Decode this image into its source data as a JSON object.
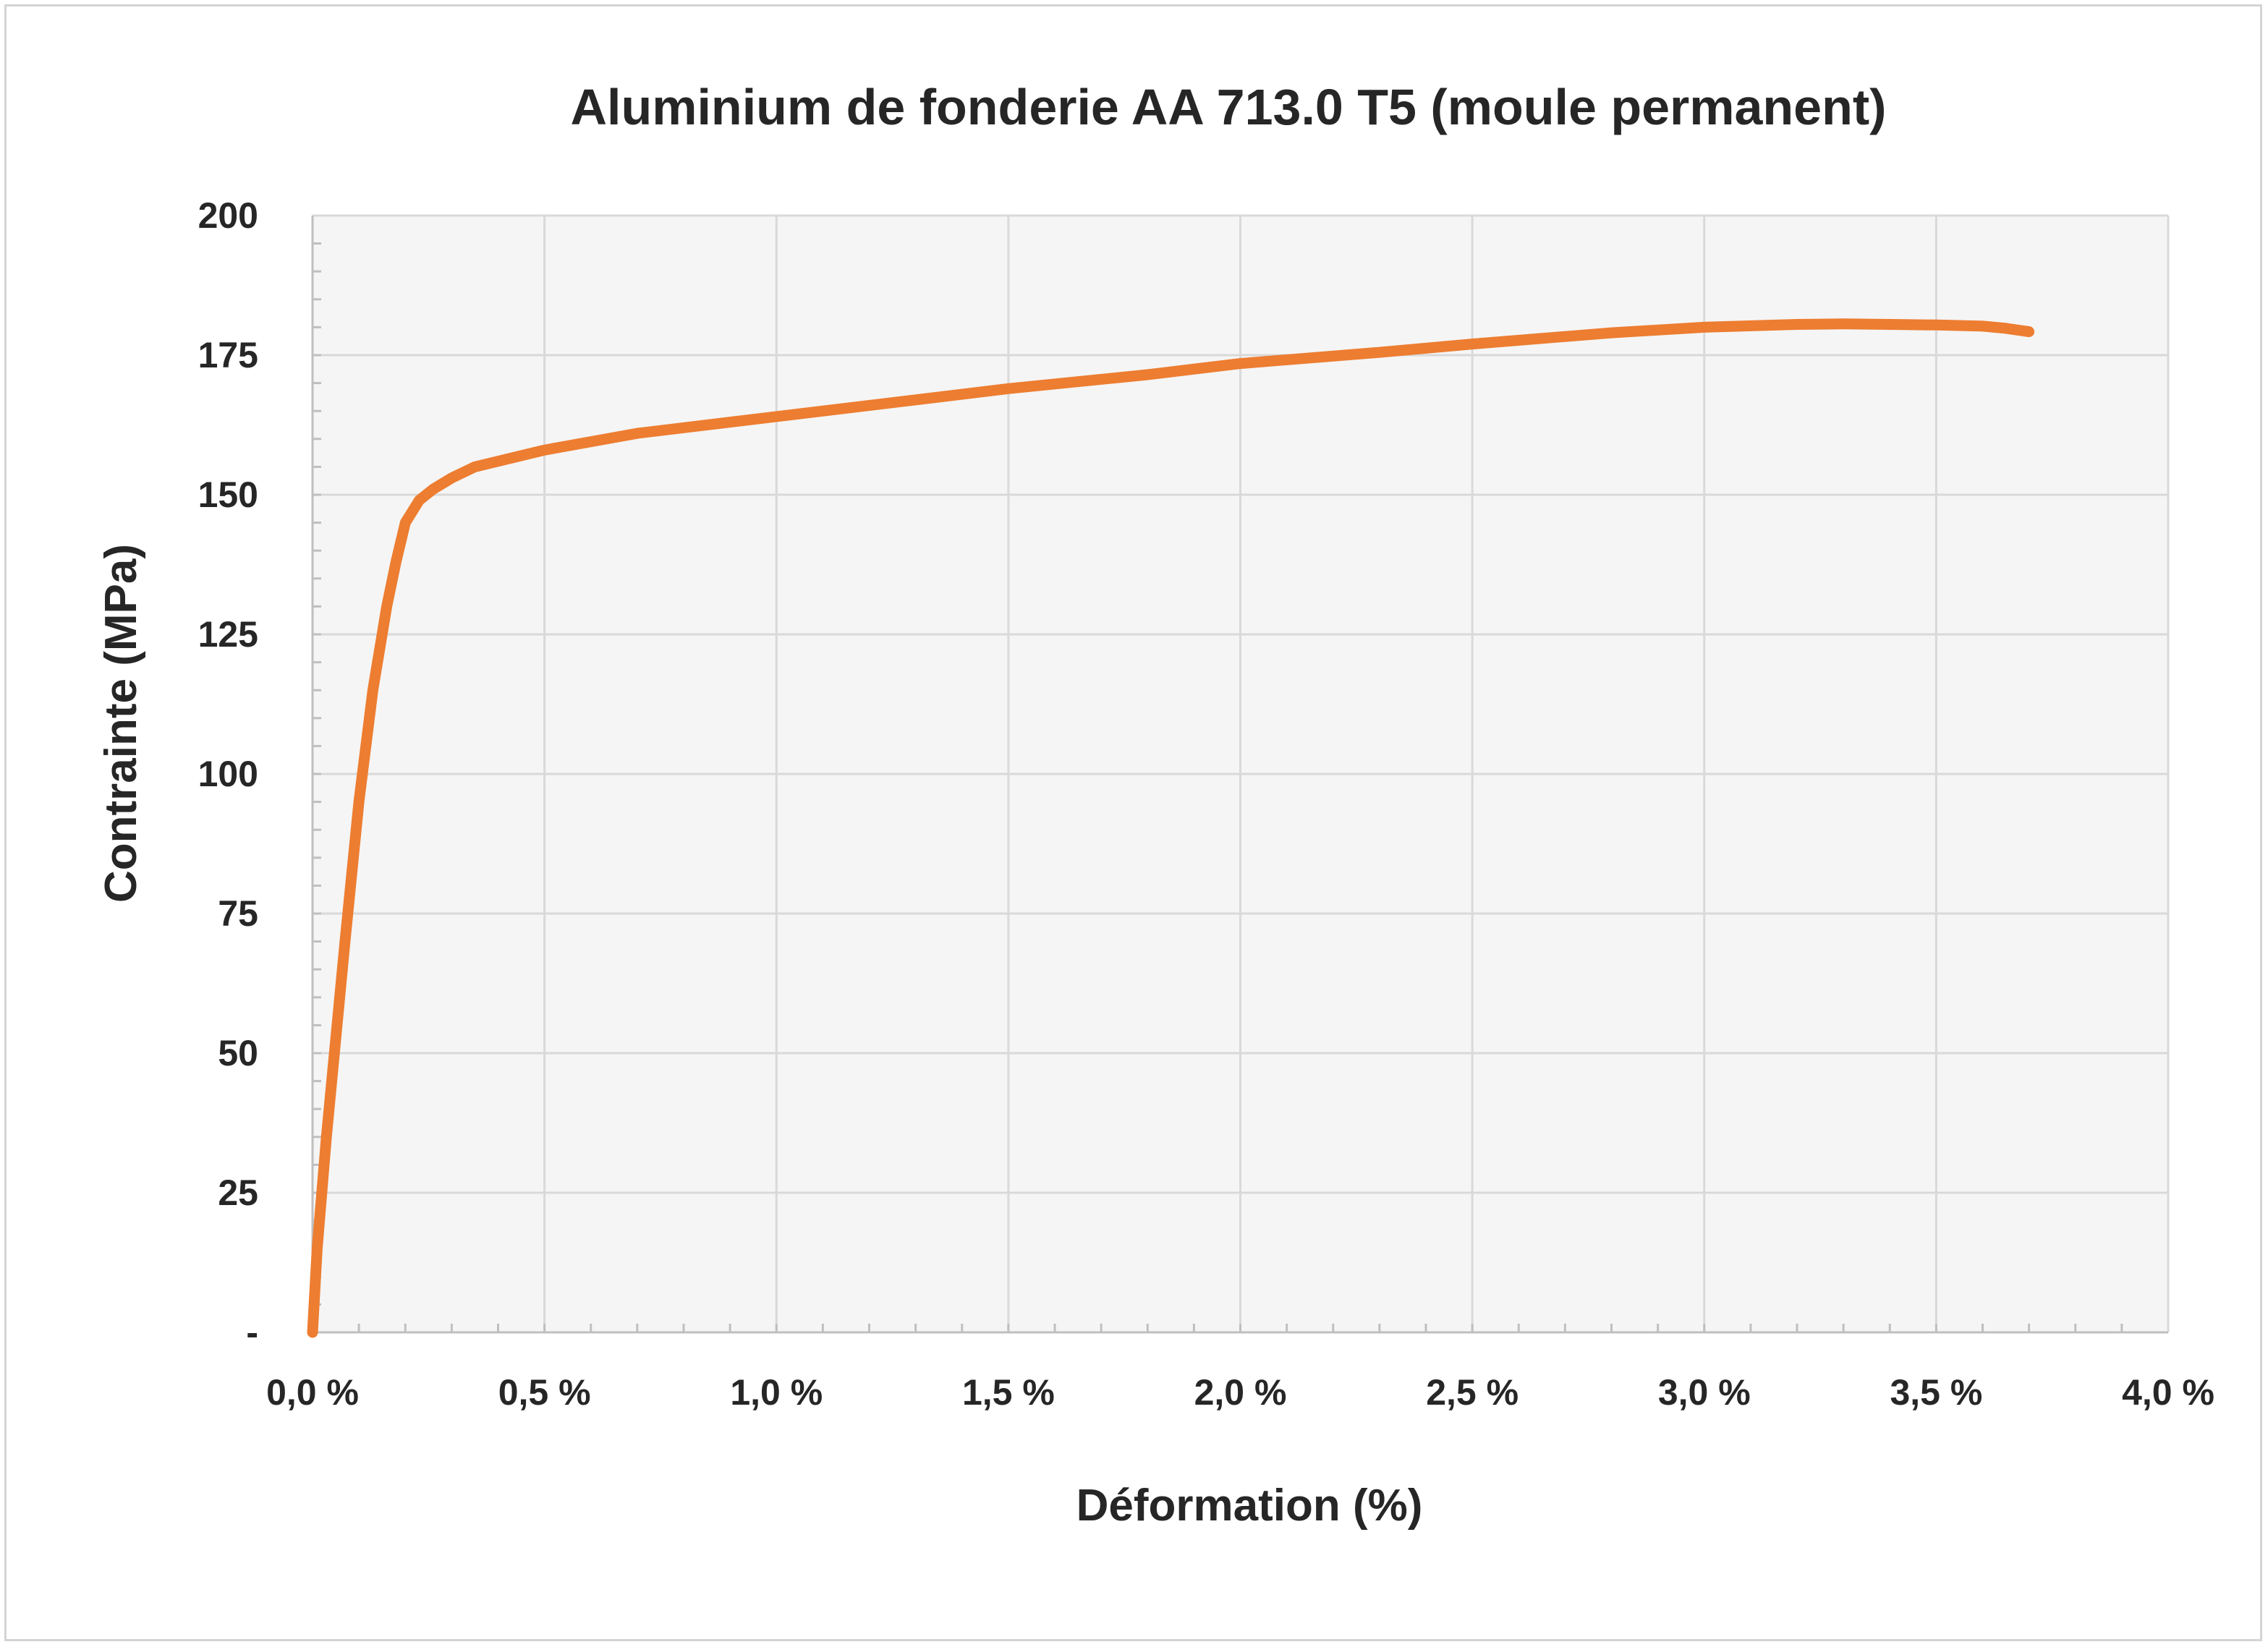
{
  "chart_data": {
    "type": "line",
    "title": "Aluminium de fonderie AA 713.0 T5 (moule permanent)",
    "xlabel": "Déformation (%)",
    "ylabel": "Contrainte (MPa)",
    "xlim": [
      0,
      4.0
    ],
    "ylim": [
      0,
      200
    ],
    "x_ticks": [
      {
        "value": 0.0,
        "label": "0,0 %"
      },
      {
        "value": 0.5,
        "label": "0,5 %"
      },
      {
        "value": 1.0,
        "label": "1,0 %"
      },
      {
        "value": 1.5,
        "label": "1,5 %"
      },
      {
        "value": 2.0,
        "label": "2,0 %"
      },
      {
        "value": 2.5,
        "label": "2,5 %"
      },
      {
        "value": 3.0,
        "label": "3,0 %"
      },
      {
        "value": 3.5,
        "label": "3,5 %"
      },
      {
        "value": 4.0,
        "label": "4,0 %"
      }
    ],
    "y_ticks": [
      {
        "value": 0,
        "label": "-"
      },
      {
        "value": 25,
        "label": "25"
      },
      {
        "value": 50,
        "label": "50"
      },
      {
        "value": 75,
        "label": "75"
      },
      {
        "value": 100,
        "label": "100"
      },
      {
        "value": 125,
        "label": "125"
      },
      {
        "value": 150,
        "label": "150"
      },
      {
        "value": 175,
        "label": "175"
      },
      {
        "value": 200,
        "label": "200"
      }
    ],
    "grid": true,
    "legend": "none",
    "series": [
      {
        "color": "#ED7D31",
        "x": [
          0.0,
          0.01,
          0.03,
          0.07,
          0.1,
          0.13,
          0.16,
          0.18,
          0.2,
          0.23,
          0.26,
          0.3,
          0.35,
          0.4,
          0.5,
          0.7,
          1.0,
          1.3,
          1.5,
          1.8,
          2.0,
          2.3,
          2.5,
          2.8,
          3.0,
          3.2,
          3.3,
          3.4,
          3.5,
          3.6,
          3.65,
          3.7
        ],
        "y": [
          0,
          15,
          35,
          70,
          95,
          115,
          130,
          138,
          145,
          149,
          151,
          153,
          155,
          156,
          158,
          161,
          164,
          167,
          169,
          171.5,
          173.5,
          175.5,
          177,
          179,
          180,
          180.5,
          180.6,
          180.5,
          180.4,
          180.2,
          179.8,
          179.2
        ]
      }
    ]
  }
}
